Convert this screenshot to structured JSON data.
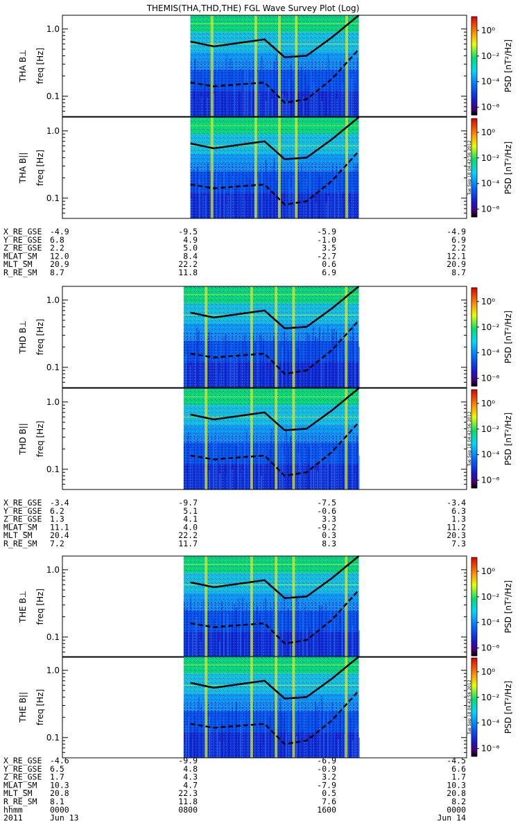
{
  "title": "THEMIS(THA,THD,THE) FGL Wave Survey Plot (Log)",
  "freq_axis_label": "freq [Hz]",
  "freq_ticks": [
    "1.0",
    "0.1"
  ],
  "colorbar": {
    "label": "PSD [nT²/Hz]",
    "ticks": [
      "10⁰",
      "10⁻²",
      "10⁻⁴",
      "10⁻⁶"
    ]
  },
  "timestamp": "Tue Sep 18 04:42:56 2012",
  "chart_data": {
    "type": "heatmap",
    "x_range_hours": [
      0,
      24
    ],
    "y_range_hz": [
      0.05,
      1.6
    ],
    "y_scale": "log",
    "panels": [
      {
        "id": "tha-bperp",
        "label": "THA B⊥",
        "probe": "THA",
        "data_start_h": 7.6,
        "data_end_h": 17.6
      },
      {
        "id": "tha-bpar",
        "label": "THA B||",
        "probe": "THA",
        "data_start_h": 7.6,
        "data_end_h": 17.6
      },
      {
        "id": "thd-bperp",
        "label": "THD B⊥",
        "probe": "THD",
        "data_start_h": 7.2,
        "data_end_h": 17.6
      },
      {
        "id": "thd-bpar",
        "label": "THD B||",
        "probe": "THD",
        "data_start_h": 7.2,
        "data_end_h": 17.6
      },
      {
        "id": "the-bperp",
        "label": "THE B⊥",
        "probe": "THE",
        "data_start_h": 7.2,
        "data_end_h": 17.6
      },
      {
        "id": "the-bpar",
        "label": "THE B||",
        "probe": "THE",
        "data_start_h": 7.2,
        "data_end_h": 17.6
      }
    ],
    "gyro_curves_hz": {
      "hours": [
        7.6,
        9,
        10.5,
        12,
        13.2,
        14.5,
        16,
        17.6
      ],
      "upper": [
        0.65,
        0.55,
        0.62,
        0.7,
        0.38,
        0.4,
        0.75,
        2.0
      ],
      "lower": [
        0.16,
        0.14,
        0.15,
        0.16,
        0.08,
        0.09,
        0.18,
        0.5
      ]
    },
    "ephemeris": [
      {
        "probe": "THA",
        "rows": [
          {
            "label": "X_RE_GSE",
            "values": [
              "-4.9",
              "-9.5",
              "-5.9",
              "-4.9"
            ]
          },
          {
            "label": "Y_RE_GSE",
            "values": [
              "6.8",
              "4.9",
              "-1.0",
              "6.9"
            ]
          },
          {
            "label": "Z_RE_GSE",
            "values": [
              "2.2",
              "5.0",
              "3.5",
              "2.2"
            ]
          },
          {
            "label": "MLAT_SM",
            "values": [
              "12.0",
              "8.4",
              "-2.7",
              "12.1"
            ]
          },
          {
            "label": "MLT_SM",
            "values": [
              "20.9",
              "22.2",
              "0.6",
              "20.9"
            ]
          },
          {
            "label": "R_RE_SM",
            "values": [
              "8.7",
              "11.8",
              "6.9",
              "8.7"
            ]
          }
        ]
      },
      {
        "probe": "THD",
        "rows": [
          {
            "label": "X_RE_GSE",
            "values": [
              "-3.4",
              "-9.7",
              "-7.5",
              "-3.4"
            ]
          },
          {
            "label": "Y_RE_GSE",
            "values": [
              "6.2",
              "5.1",
              "-0.6",
              "6.3"
            ]
          },
          {
            "label": "Z_RE_GSE",
            "values": [
              "1.3",
              "4.1",
              "3.3",
              "1.3"
            ]
          },
          {
            "label": "MLAT_SM",
            "values": [
              "11.1",
              "4.0",
              "-9.2",
              "11.2"
            ]
          },
          {
            "label": "MLT_SM",
            "values": [
              "20.4",
              "22.2",
              "0.3",
              "20.3"
            ]
          },
          {
            "label": "R_RE_SM",
            "values": [
              "7.2",
              "11.7",
              "8.3",
              "7.3"
            ]
          }
        ]
      },
      {
        "probe": "THE",
        "rows": [
          {
            "label": "X_RE_GSE",
            "values": [
              "-4.6",
              "-9.9",
              "-6.9",
              "-4.5"
            ]
          },
          {
            "label": "Y_RE_GSE",
            "values": [
              "6.5",
              "4.8",
              "-0.9",
              "6.6"
            ]
          },
          {
            "label": "Z_RE_GSE",
            "values": [
              "1.7",
              "4.3",
              "3.2",
              "1.7"
            ]
          },
          {
            "label": "MLAT_SM",
            "values": [
              "10.3",
              "4.7",
              "-7.9",
              "10.3"
            ]
          },
          {
            "label": "MLT_SM",
            "values": [
              "20.8",
              "22.3",
              "0.5",
              "20.8"
            ]
          },
          {
            "label": "R_RE_SM",
            "values": [
              "8.1",
              "11.8",
              "7.6",
              "8.2"
            ]
          }
        ]
      }
    ],
    "time_row": {
      "label": "hhmm",
      "values": [
        "0000",
        "0800",
        "1600",
        "0000"
      ]
    },
    "date_row": {
      "year": "2011",
      "start": "Jun 13",
      "end": "Jun 14"
    }
  }
}
